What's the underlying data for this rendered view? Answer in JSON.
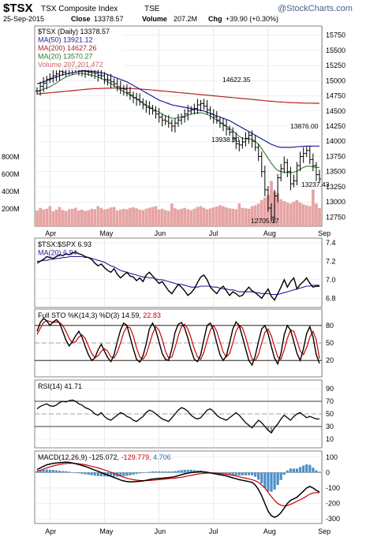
{
  "header": {
    "symbol": "$TSX",
    "name": "TSX Composite Index",
    "exchange": "TSE",
    "watermark": "@StockCharts.com",
    "date": "25-Sep-2015",
    "close_label": "Close",
    "close_value": "13378.57",
    "volume_label": "Volume",
    "volume_value": "207.2M",
    "chg_label": "Chg",
    "chg_value": "+39.90 (+0.30%)"
  },
  "chart_data": [
    {
      "type": "candlestick",
      "panel": "price",
      "ylim": [
        12600,
        15900
      ],
      "y_ticks": [
        "15750",
        "15500",
        "15250",
        "15000",
        "14750",
        "14500",
        "14250",
        "14000",
        "13750",
        "13500",
        "13250",
        "13000",
        "12750"
      ],
      "volume_ticks": [
        "800M",
        "600M",
        "400M",
        "200M"
      ],
      "x_tick_labels": [
        "Apr",
        "May",
        "Jun",
        "Jul",
        "Aug",
        "Sep"
      ],
      "legend": [
        {
          "label": "$TSX (Daily) 13378.57",
          "color": "#000000"
        },
        {
          "label": "MA(50) 13921.12",
          "color": "#1f1f9c"
        },
        {
          "label": "MA(200) 14627.26",
          "color": "#b22222"
        },
        {
          "label": "MA(20) 13570.27",
          "color": "#2e7d32"
        },
        {
          "label": "Volume 207,201,472",
          "color": "#cc6666"
        }
      ],
      "annotations": [
        "14622.35",
        "13938.90",
        "13876.00",
        "13237.43",
        "12705.17"
      ],
      "close": [
        14830,
        14905,
        14960,
        15020,
        15040,
        15080,
        15110,
        15150,
        15140,
        15180,
        15200,
        15210,
        15190,
        15160,
        15170,
        15150,
        15140,
        15130,
        15120,
        15090,
        15080,
        15020,
        15010,
        14980,
        14950,
        14900,
        14870,
        14860,
        14800,
        14760,
        14720,
        14690,
        14650,
        14600,
        14560,
        14540,
        14500,
        14450,
        14400,
        14350,
        14330,
        14300,
        14250,
        14300,
        14350,
        14400,
        14450,
        14500,
        14520,
        14540,
        14600,
        14620,
        14580,
        14520,
        14450,
        14400,
        14350,
        14300,
        14260,
        14200,
        14150,
        14050,
        13960,
        13940,
        13990,
        14050,
        14100,
        14000,
        13900,
        13750,
        13500,
        13200,
        12900,
        12750,
        13100,
        13400,
        13550,
        13650,
        13500,
        13300,
        13350,
        13600,
        13750,
        13800,
        13850,
        13700,
        13600,
        13450,
        13380
      ],
      "ma20": [
        14820,
        14840,
        14860,
        14880,
        14900,
        14930,
        14960,
        15000,
        15030,
        15060,
        15080,
        15100,
        15110,
        15120,
        15120,
        15110,
        15100,
        15090,
        15080,
        15060,
        15040,
        15010,
        14980,
        14950,
        14920,
        14880,
        14850,
        14820,
        14790,
        14760,
        14730,
        14700,
        14660,
        14630,
        14600,
        14570,
        14540,
        14510,
        14480,
        14450,
        14420,
        14400,
        14380,
        14380,
        14390,
        14400,
        14410,
        14430,
        14450,
        14460,
        14470,
        14470,
        14460,
        14440,
        14420,
        14380,
        14350,
        14310,
        14280,
        14250,
        14210,
        14170,
        14130,
        14080,
        14050,
        14040,
        14040,
        14030,
        14000,
        13950,
        13880,
        13800,
        13720,
        13640,
        13570,
        13520,
        13500,
        13490,
        13490,
        13480,
        13490,
        13510,
        13540,
        13570,
        13590,
        13590,
        13580,
        13570,
        13570
      ],
      "ma50": [
        14950,
        14960,
        14980,
        15000,
        15020,
        15040,
        15060,
        15080,
        15100,
        15110,
        15120,
        15130,
        15140,
        15150,
        15155,
        15160,
        15160,
        15155,
        15150,
        15140,
        15130,
        15120,
        15100,
        15080,
        15060,
        15040,
        15020,
        15000,
        14980,
        14950,
        14920,
        14890,
        14860,
        14830,
        14800,
        14770,
        14740,
        14710,
        14680,
        14660,
        14640,
        14620,
        14600,
        14590,
        14580,
        14570,
        14560,
        14550,
        14540,
        14530,
        14520,
        14510,
        14500,
        14480,
        14460,
        14440,
        14420,
        14400,
        14380,
        14360,
        14340,
        14310,
        14280,
        14250,
        14220,
        14190,
        14160,
        14130,
        14100,
        14070,
        14040,
        14010,
        13980,
        13950,
        13930,
        13910,
        13900,
        13900,
        13900,
        13900,
        13905,
        13910,
        13915,
        13918,
        13920,
        13921,
        13921,
        13921,
        13921
      ],
      "ma200": [
        14780,
        14785,
        14790,
        14795,
        14800,
        14805,
        14810,
        14815,
        14820,
        14825,
        14830,
        14835,
        14840,
        14845,
        14850,
        14855,
        14860,
        14865,
        14868,
        14870,
        14872,
        14874,
        14875,
        14876,
        14876,
        14876,
        14875,
        14874,
        14872,
        14870,
        14868,
        14865,
        14862,
        14858,
        14854,
        14850,
        14845,
        14840,
        14835,
        14830,
        14825,
        14820,
        14815,
        14810,
        14805,
        14800,
        14795,
        14790,
        14785,
        14780,
        14775,
        14770,
        14765,
        14760,
        14755,
        14750,
        14745,
        14740,
        14735,
        14730,
        14725,
        14720,
        14715,
        14710,
        14705,
        14700,
        14695,
        14690,
        14685,
        14680,
        14675,
        14670,
        14665,
        14660,
        14655,
        14650,
        14647,
        14644,
        14641,
        14638,
        14636,
        14634,
        14632,
        14631,
        14630,
        14629,
        14628,
        14627,
        14627
      ],
      "volume": [
        180,
        210,
        190,
        200,
        230,
        170,
        190,
        220,
        185,
        175,
        195,
        200,
        210,
        180,
        190,
        175,
        185,
        200,
        195,
        230,
        210,
        190,
        200,
        215,
        220,
        180,
        190,
        200,
        195,
        210,
        215,
        205,
        190,
        185,
        200,
        210,
        220,
        230,
        190,
        200,
        185,
        175,
        260,
        205,
        190,
        200,
        210,
        195,
        185,
        200,
        220,
        230,
        210,
        195,
        205,
        215,
        225,
        240,
        230,
        215,
        205,
        200,
        195,
        260,
        210,
        205,
        200,
        230,
        240,
        260,
        300,
        330,
        360,
        520,
        400,
        380,
        310,
        290,
        270,
        260,
        280,
        300,
        270,
        250,
        240,
        230,
        420,
        260,
        207
      ]
    },
    {
      "type": "line",
      "panel": "ratio",
      "legend": [
        {
          "label": "$TSX:$SPX 6.93",
          "color": "#000000"
        },
        {
          "label": "MA(20) 6.94",
          "color": "#1f1f9c"
        }
      ],
      "ylim": [
        6.7,
        7.45
      ],
      "y_ticks": [
        "7.4",
        "7.2",
        "7.0",
        "6.8"
      ],
      "values": [
        7.18,
        7.2,
        7.22,
        7.25,
        7.24,
        7.23,
        7.25,
        7.27,
        7.26,
        7.28,
        7.27,
        7.29,
        7.3,
        7.28,
        7.27,
        7.25,
        7.24,
        7.22,
        7.18,
        7.15,
        7.17,
        7.13,
        7.1,
        7.08,
        7.12,
        7.06,
        7.02,
        7.05,
        7.08,
        7.04,
        7.03,
        6.99,
        7.02,
        6.98,
        7.05,
        7.08,
        7.04,
        7.0,
        6.96,
        6.98,
        6.93,
        6.88,
        6.85,
        6.9,
        6.95,
        6.92,
        6.88,
        6.83,
        6.86,
        6.9,
        6.97,
        7.03,
        7.05,
        7.0,
        6.92,
        6.88,
        6.85,
        6.9,
        6.93,
        6.88,
        6.83,
        6.87,
        6.85,
        6.82,
        6.83,
        6.88,
        6.92,
        6.88,
        6.86,
        6.83,
        6.8,
        6.85,
        6.9,
        6.82,
        6.78,
        6.85,
        6.92,
        7.0,
        6.92,
        6.98,
        7.02,
        6.9,
        6.95,
        6.98,
        7.02,
        6.96,
        6.92,
        6.93,
        6.93
      ],
      "ma": [
        7.2,
        7.2,
        7.21,
        7.21,
        7.22,
        7.22,
        7.23,
        7.23,
        7.24,
        7.24,
        7.25,
        7.25,
        7.25,
        7.25,
        7.25,
        7.24,
        7.24,
        7.23,
        7.22,
        7.21,
        7.2,
        7.19,
        7.17,
        7.15,
        7.14,
        7.12,
        7.1,
        7.09,
        7.08,
        7.07,
        7.06,
        7.05,
        7.04,
        7.03,
        7.03,
        7.02,
        7.02,
        7.01,
        7.0,
        7.0,
        6.99,
        6.98,
        6.97,
        6.96,
        6.95,
        6.95,
        6.94,
        6.93,
        6.92,
        6.92,
        6.92,
        6.93,
        6.93,
        6.93,
        6.93,
        6.92,
        6.92,
        6.91,
        6.9,
        6.9,
        6.89,
        6.89,
        6.88,
        6.87,
        6.87,
        6.87,
        6.87,
        6.87,
        6.86,
        6.86,
        6.85,
        6.85,
        6.85,
        6.84,
        6.84,
        6.84,
        6.85,
        6.86,
        6.87,
        6.88,
        6.89,
        6.9,
        6.91,
        6.92,
        6.93,
        6.93,
        6.94,
        6.94,
        6.94
      ]
    },
    {
      "type": "line",
      "panel": "full_sto",
      "legend": [
        {
          "label": "Full STO %K(14,3) %D(3) 14.59,",
          "color": "#000000"
        },
        {
          "label": "22.83",
          "color": "#cc0000"
        }
      ],
      "ylim": [
        0,
        100
      ],
      "y_ticks": [
        "80",
        "50",
        "20"
      ],
      "k": [
        70,
        85,
        92,
        88,
        80,
        86,
        90,
        84,
        70,
        55,
        45,
        52,
        62,
        70,
        60,
        44,
        30,
        20,
        24,
        38,
        48,
        36,
        25,
        18,
        30,
        52,
        72,
        84,
        80,
        60,
        40,
        22,
        17,
        28,
        48,
        74,
        84,
        72,
        52,
        32,
        22,
        20,
        40,
        68,
        82,
        85,
        76,
        58,
        38,
        22,
        18,
        30,
        56,
        80,
        84,
        72,
        50,
        30,
        20,
        28,
        50,
        74,
        86,
        80,
        60,
        40,
        20,
        12,
        28,
        52,
        74,
        80,
        66,
        44,
        24,
        14,
        32,
        64,
        80,
        72,
        52,
        32,
        20,
        40,
        66,
        78,
        60,
        30,
        15
      ],
      "d": [
        65,
        75,
        85,
        88,
        87,
        85,
        86,
        85,
        80,
        70,
        58,
        50,
        52,
        60,
        64,
        58,
        45,
        32,
        25,
        28,
        36,
        40,
        36,
        26,
        24,
        34,
        50,
        68,
        78,
        76,
        62,
        42,
        26,
        22,
        30,
        48,
        66,
        78,
        72,
        56,
        36,
        24,
        26,
        42,
        62,
        78,
        82,
        74,
        58,
        40,
        26,
        22,
        34,
        54,
        72,
        80,
        70,
        52,
        34,
        26,
        32,
        50,
        70,
        80,
        76,
        60,
        40,
        22,
        20,
        30,
        50,
        68,
        74,
        62,
        44,
        26,
        22,
        38,
        58,
        72,
        70,
        54,
        36,
        30,
        42,
        60,
        70,
        56,
        23
      ]
    },
    {
      "type": "line",
      "panel": "rsi",
      "legend": [
        {
          "label": "RSI(14) 41.71",
          "color": "#000000"
        }
      ],
      "ylim": [
        0,
        100
      ],
      "y_ticks": [
        "90",
        "70",
        "50",
        "30",
        "10"
      ],
      "values": [
        58,
        62,
        64,
        66,
        63,
        62,
        64,
        68,
        70,
        69,
        71,
        72,
        70,
        66,
        64,
        60,
        58,
        55,
        50,
        48,
        52,
        46,
        42,
        40,
        44,
        48,
        52,
        50,
        46,
        44,
        40,
        38,
        42,
        46,
        52,
        56,
        54,
        50,
        46,
        42,
        40,
        38,
        44,
        50,
        56,
        60,
        58,
        54,
        48,
        44,
        42,
        44,
        50,
        56,
        58,
        54,
        48,
        44,
        42,
        40,
        44,
        48,
        52,
        48,
        42,
        36,
        32,
        28,
        34,
        40,
        36,
        30,
        24,
        20,
        28,
        34,
        42,
        48,
        44,
        40,
        46,
        50,
        52,
        48,
        44,
        46,
        44,
        42,
        42
      ]
    },
    {
      "type": "bar_line",
      "panel": "macd",
      "legend": [
        {
          "label": "MACD(12,26,9)",
          "color": "#000000"
        },
        {
          "label": "-125.072,",
          "color": "#000000"
        },
        {
          "label": "-129.779,",
          "color": "#cc0000"
        },
        {
          "label": "4.706",
          "color": "#1f6fb4"
        }
      ],
      "ylim": [
        -330,
        140
      ],
      "y_ticks": [
        "100",
        "0",
        "-100",
        "-200",
        "-300"
      ],
      "macd": [
        20,
        30,
        40,
        50,
        55,
        60,
        62,
        64,
        66,
        68,
        66,
        62,
        58,
        52,
        46,
        40,
        32,
        24,
        16,
        8,
        0,
        -8,
        -16,
        -24,
        -32,
        -40,
        -48,
        -54,
        -58,
        -60,
        -60,
        -58,
        -56,
        -54,
        -50,
        -46,
        -42,
        -40,
        -38,
        -36,
        -34,
        -32,
        -30,
        -26,
        -20,
        -14,
        -8,
        -4,
        0,
        2,
        4,
        6,
        4,
        2,
        -2,
        -6,
        -10,
        -14,
        -18,
        -22,
        -28,
        -34,
        -40,
        -46,
        -50,
        -54,
        -58,
        -64,
        -80,
        -110,
        -150,
        -200,
        -250,
        -280,
        -290,
        -280,
        -260,
        -230,
        -200,
        -180,
        -170,
        -160,
        -140,
        -120,
        -100,
        -90,
        -100,
        -115,
        -125
      ],
      "signal": [
        10,
        15,
        22,
        30,
        37,
        43,
        48,
        52,
        56,
        59,
        60,
        60,
        59,
        57,
        54,
        51,
        46,
        41,
        36,
        30,
        24,
        17,
        10,
        2,
        -6,
        -14,
        -22,
        -30,
        -37,
        -42,
        -46,
        -49,
        -51,
        -52,
        -52,
        -51,
        -50,
        -48,
        -46,
        -44,
        -42,
        -40,
        -38,
        -36,
        -33,
        -30,
        -26,
        -22,
        -18,
        -14,
        -10,
        -7,
        -5,
        -3,
        -3,
        -3,
        -4,
        -6,
        -8,
        -11,
        -14,
        -18,
        -22,
        -27,
        -32,
        -36,
        -41,
        -46,
        -53,
        -64,
        -80,
        -100,
        -128,
        -156,
        -180,
        -200,
        -212,
        -216,
        -214,
        -206,
        -196,
        -186,
        -176,
        -165,
        -153,
        -140,
        -132,
        -130,
        -130
      ]
    }
  ]
}
